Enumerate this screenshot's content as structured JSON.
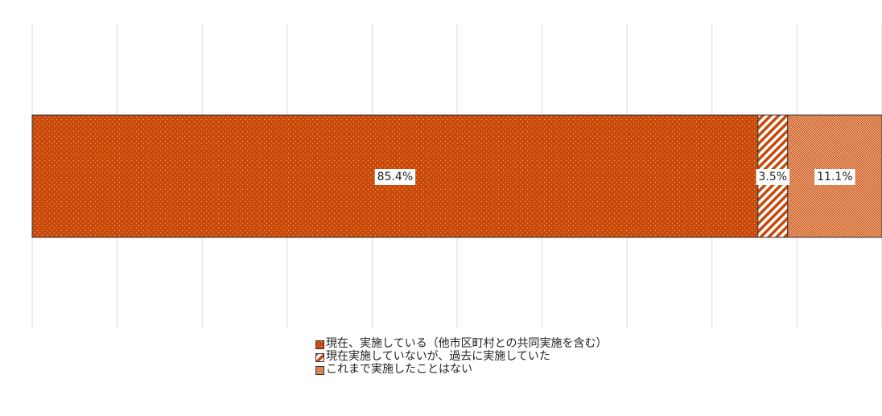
{
  "chart_data": {
    "type": "bar",
    "stacked": true,
    "orientation": "horizontal",
    "categories": [
      ""
    ],
    "series": [
      {
        "name": "現在、実施している（他市区町村との共同実施を含む）",
        "values": [
          85.4
        ],
        "label": "85.4%",
        "color": "#c84808",
        "pattern": "dots"
      },
      {
        "name": "現在実施していないが、過去に実施していた",
        "values": [
          3.5
        ],
        "label": "3.5%",
        "color": "#c84808",
        "pattern": "diagonal"
      },
      {
        "name": "これまで実施したことはない",
        "values": [
          11.1
        ],
        "label": "11.1%",
        "color": "#c84808",
        "pattern": "checker"
      }
    ],
    "xlim": [
      0,
      100
    ],
    "grid": true,
    "legend_position": "bottom"
  }
}
